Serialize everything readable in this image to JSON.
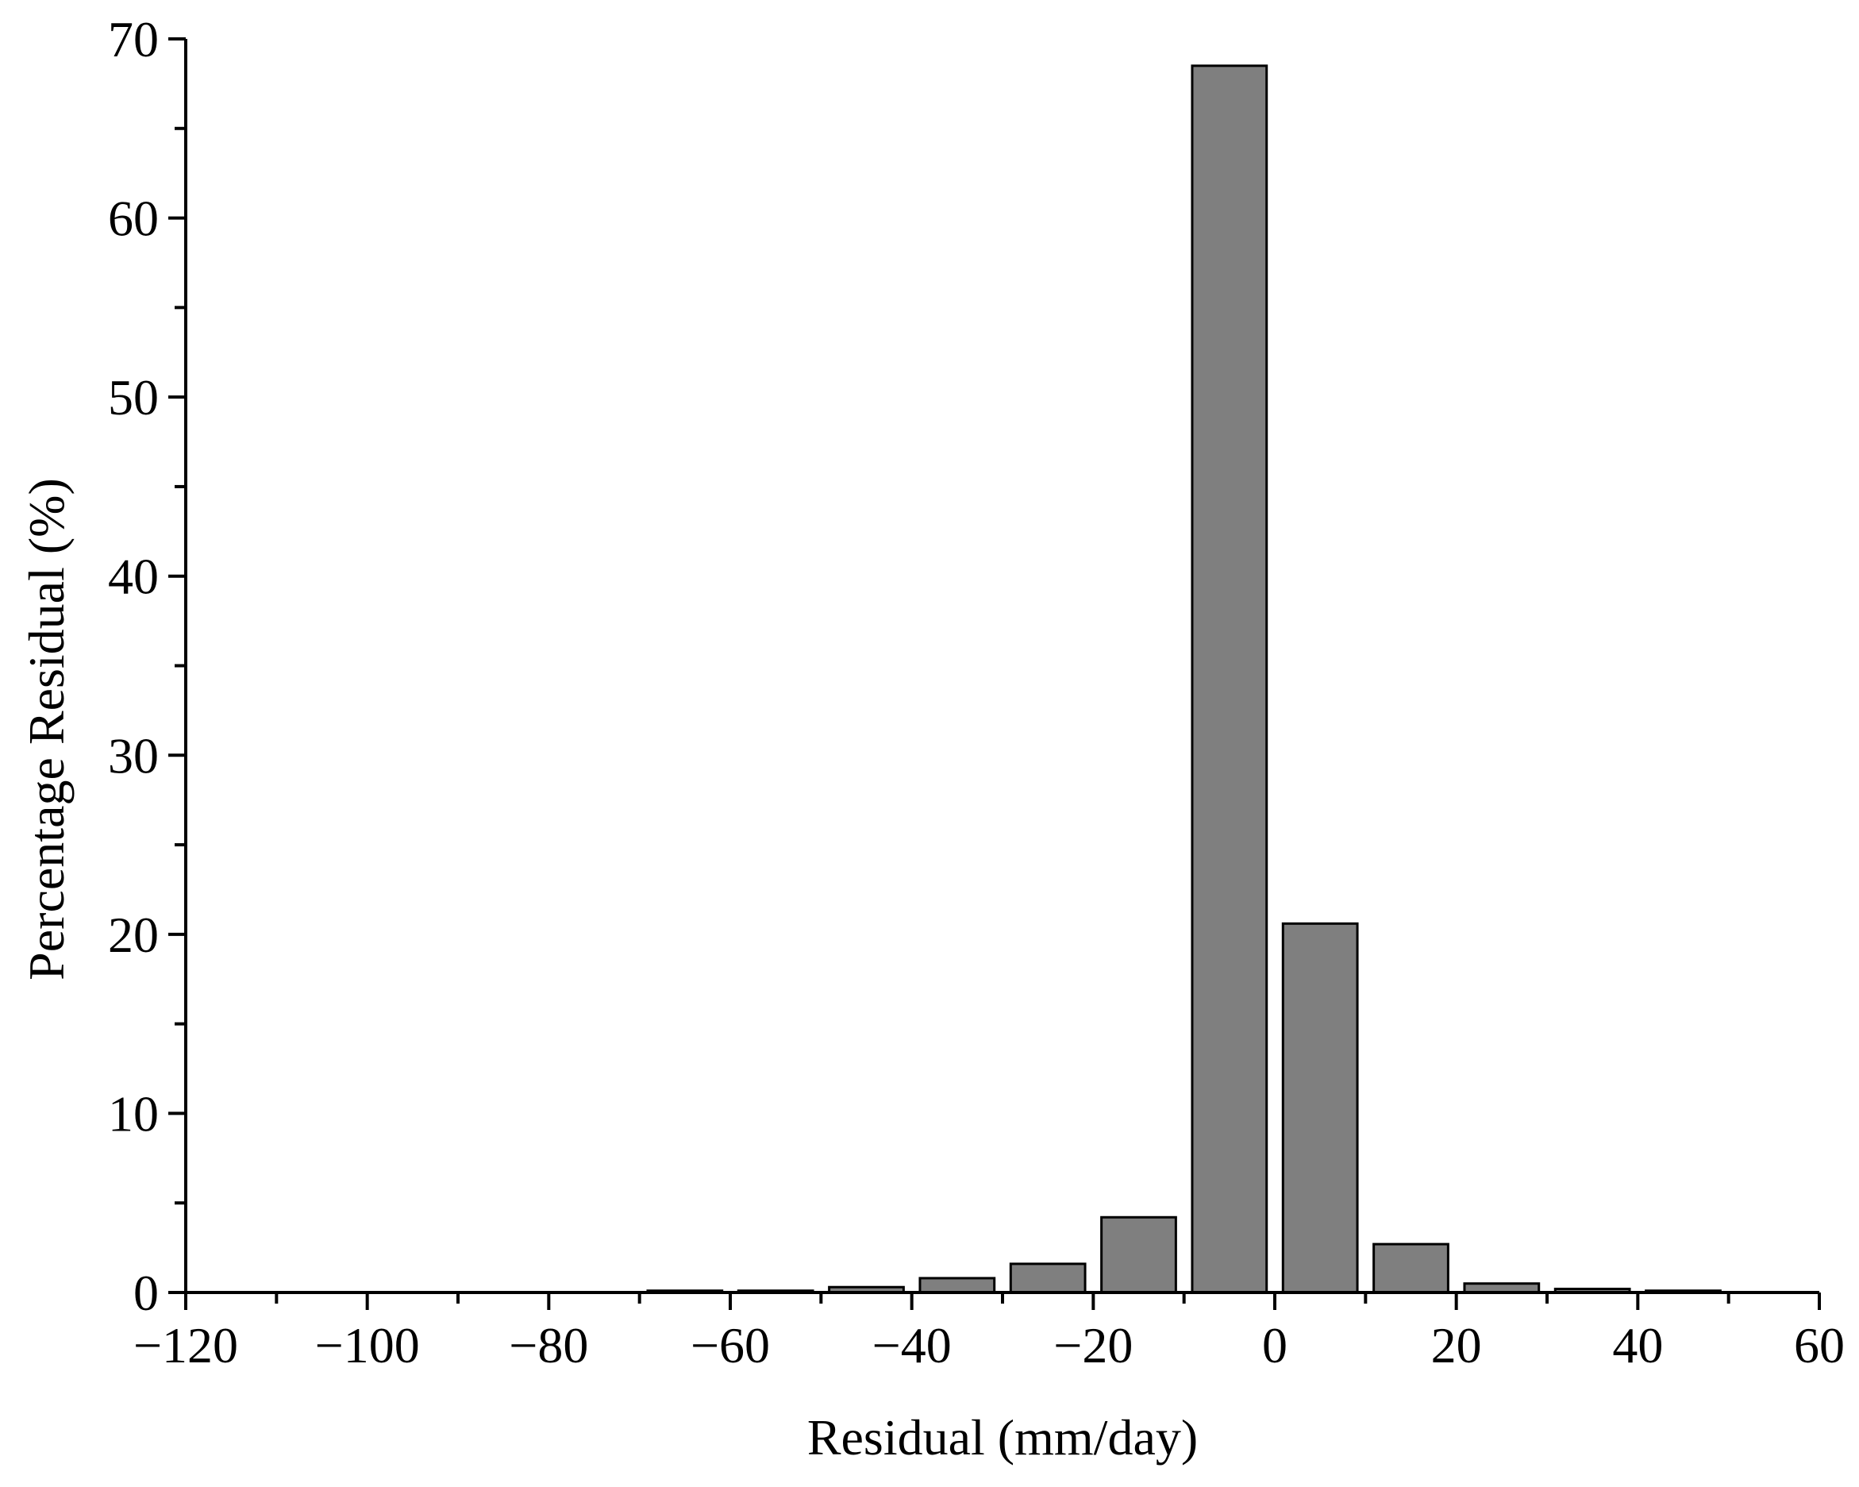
{
  "chart_data": {
    "type": "bar",
    "title": "",
    "xlabel": "Residual (mm/day)",
    "ylabel": "Percentage Residual (%)",
    "xlim": [
      -120,
      60
    ],
    "ylim": [
      0,
      70
    ],
    "x_ticks": [
      -120,
      -100,
      -80,
      -60,
      -40,
      -20,
      0,
      20,
      40,
      60
    ],
    "y_ticks": [
      0,
      10,
      20,
      30,
      40,
      50,
      60,
      70
    ],
    "bar_color": "#7f7f7f",
    "bin_width": 10,
    "bars": [
      {
        "x": -65,
        "value": 0.1
      },
      {
        "x": -55,
        "value": 0.1
      },
      {
        "x": -45,
        "value": 0.3
      },
      {
        "x": -35,
        "value": 0.8
      },
      {
        "x": -25,
        "value": 1.6
      },
      {
        "x": -15,
        "value": 4.2
      },
      {
        "x": -5,
        "value": 68.5
      },
      {
        "x": 5,
        "value": 20.6
      },
      {
        "x": 15,
        "value": 2.7
      },
      {
        "x": 25,
        "value": 0.5
      },
      {
        "x": 35,
        "value": 0.2
      },
      {
        "x": 45,
        "value": 0.1
      }
    ]
  }
}
